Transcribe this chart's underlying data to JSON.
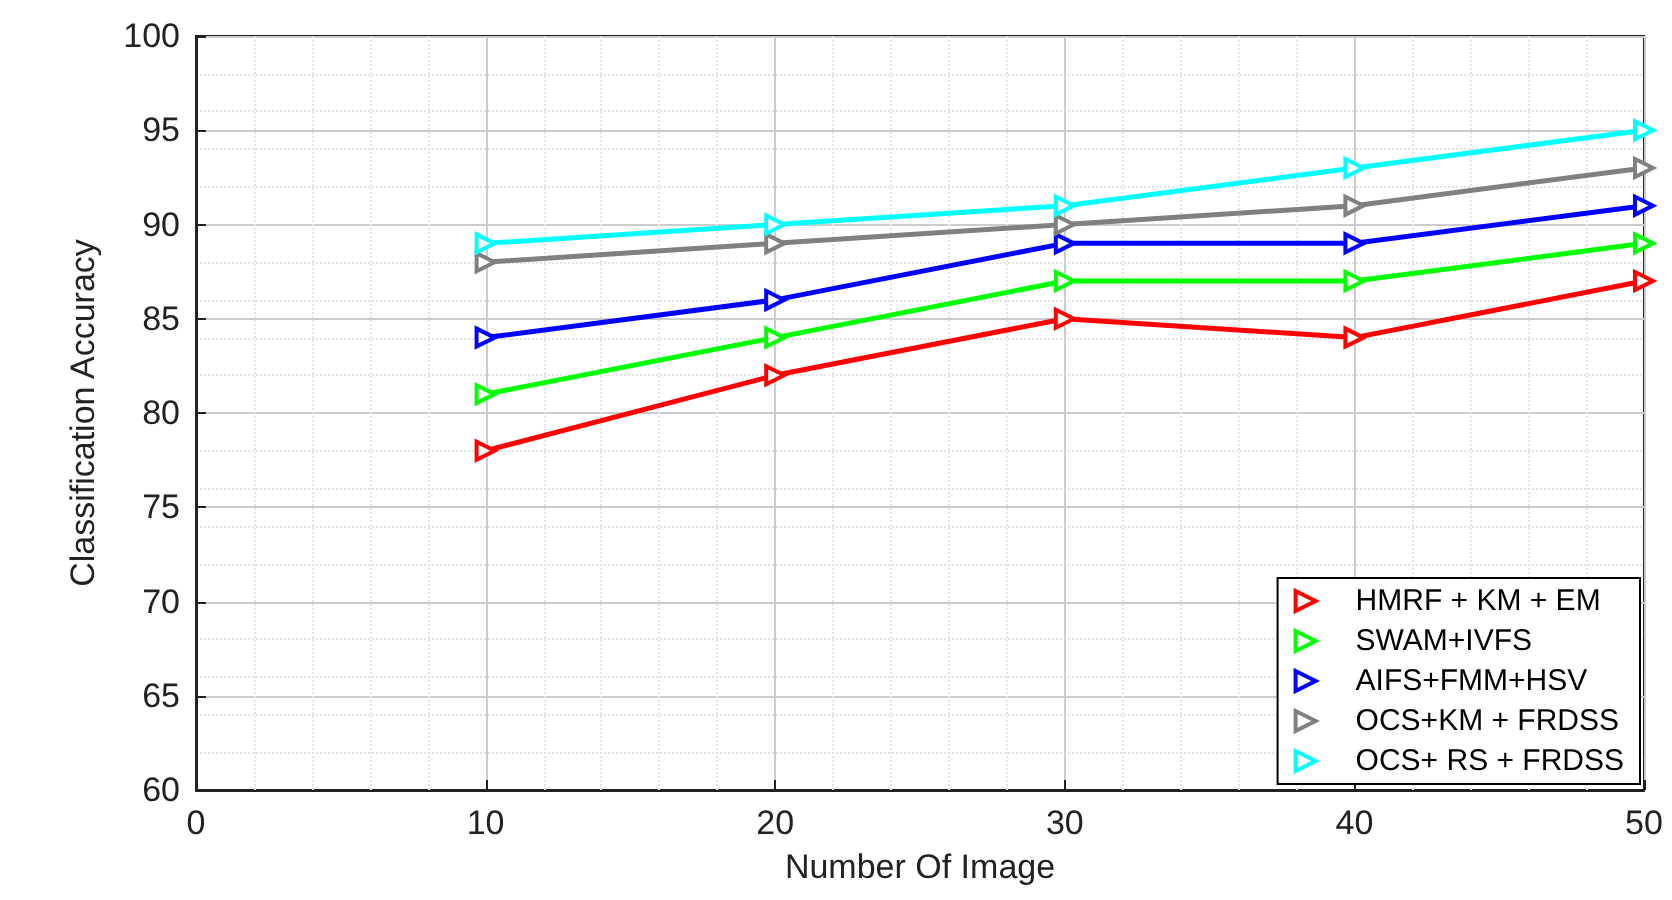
{
  "chart_data": {
    "type": "line",
    "xlabel": "Number Of Image",
    "ylabel": "Classification Accuracy",
    "x": [
      10,
      20,
      30,
      40,
      50
    ],
    "series": [
      {
        "name": "HMRF + KM + EM",
        "color": "#ff0000",
        "values": [
          78,
          82,
          85,
          84,
          87
        ]
      },
      {
        "name": "SWAM+IVFS",
        "color": "#00ff00",
        "values": [
          81,
          84,
          87,
          87,
          89
        ]
      },
      {
        "name": "AIFS+FMM+HSV",
        "color": "#0000ff",
        "values": [
          84,
          86,
          89,
          89,
          91
        ]
      },
      {
        "name": "OCS+KM + FRDSS",
        "color": "#808080",
        "values": [
          88,
          89,
          90,
          91,
          93
        ]
      },
      {
        "name": "OCS+ RS + FRDSS",
        "color": "#00ffff",
        "values": [
          89,
          90,
          91,
          93,
          95
        ]
      }
    ],
    "xlim": [
      0,
      50
    ],
    "xticks": [
      0,
      10,
      20,
      30,
      40,
      50
    ],
    "ylim": [
      60,
      100
    ],
    "yticks": [
      60,
      65,
      70,
      75,
      80,
      85,
      90,
      95,
      100
    ],
    "grid": true,
    "legend": "bottom right",
    "marker": "triangle",
    "line_style": "solid"
  }
}
